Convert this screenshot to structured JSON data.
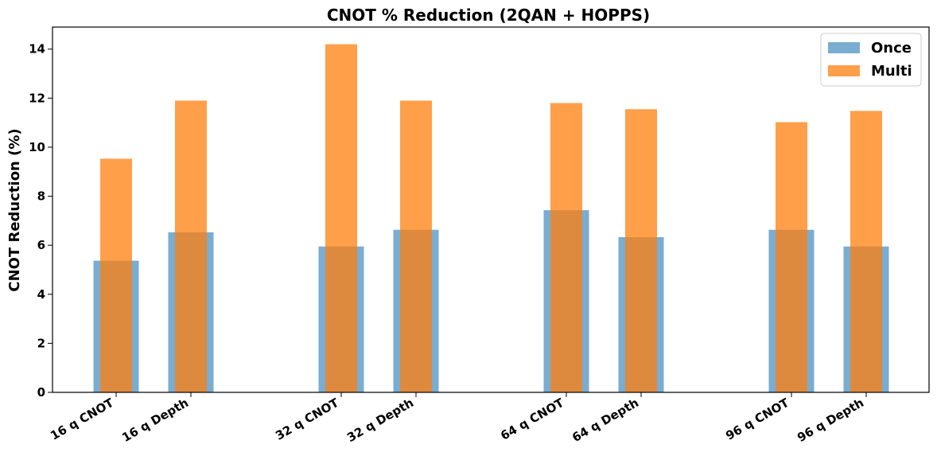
{
  "chart_data": {
    "type": "bar",
    "title": "CNOT % Reduction (2QAN + HOPPS)",
    "ylabel": "CNOT Reduction (%)",
    "xlabel": "",
    "ylim": [
      0,
      14.9
    ],
    "yticks": [
      0,
      2,
      4,
      6,
      8,
      10,
      12,
      14
    ],
    "categories": [
      "16 q CNOT",
      "16 q Depth",
      "32 q CNOT",
      "32 q Depth",
      "64 q CNOT",
      "64 q Depth",
      "96 q CNOT",
      "96 q Depth"
    ],
    "series": [
      {
        "name": "Once",
        "color": "#1f77b4",
        "opacity": 0.6,
        "values": [
          5.37,
          6.53,
          5.95,
          6.63,
          7.43,
          6.33,
          6.63,
          5.95
        ]
      },
      {
        "name": "Multi",
        "color": "#ff7f0e",
        "opacity": 0.75,
        "values": [
          9.53,
          11.9,
          14.2,
          11.9,
          11.8,
          11.55,
          11.02,
          11.48
        ]
      }
    ],
    "legend_position": "top-right",
    "grid": false
  }
}
